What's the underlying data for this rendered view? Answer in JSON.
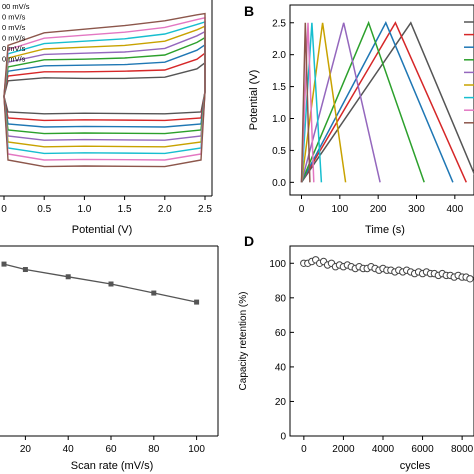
{
  "chart_data": [
    {
      "panel": "A",
      "type": "line",
      "xlabel": "Potential (V)",
      "ylabel": "",
      "xlim": [
        0,
        2.5
      ],
      "xticks": [
        "0",
        "0.5",
        "1.0",
        "1.5",
        "2.0",
        "2.5"
      ],
      "legend_visible": [
        "00 mV/s",
        "0 mV/s",
        "0 mV/s",
        "0 mV/s",
        "0 mV/s",
        "0 mV/s"
      ],
      "legend_placement": "top-left",
      "series_colors": [
        "#555555",
        "#d62728",
        "#1f77b4",
        "#2ca02c",
        "#9467bd",
        "#c8a200",
        "#17becf",
        "#e377c2",
        "#8c564b"
      ],
      "ylim": [
        -12,
        12
      ],
      "series": [
        {
          "values": [
            [
              0,
              -0.4
            ],
            [
              0.05,
              2.2
            ],
            [
              0.5,
              2.7
            ],
            [
              1.0,
              2.6
            ],
            [
              1.5,
              2.6
            ],
            [
              2.0,
              2.8
            ],
            [
              2.4,
              4.2
            ],
            [
              2.5,
              5.2
            ],
            [
              2.5,
              0.4
            ],
            [
              2.45,
              -3.0
            ],
            [
              2.0,
              -3.3
            ],
            [
              1.0,
              -3.2
            ],
            [
              0.5,
              -3.3
            ],
            [
              0.05,
              -3.0
            ],
            [
              0,
              -0.4
            ]
          ]
        },
        {
          "values": [
            [
              0,
              -0.4
            ],
            [
              0.05,
              3.0
            ],
            [
              0.5,
              3.7
            ],
            [
              1.0,
              3.7
            ],
            [
              1.5,
              3.8
            ],
            [
              2.0,
              4.0
            ],
            [
              2.4,
              5.8
            ],
            [
              2.5,
              6.8
            ],
            [
              2.5,
              0.4
            ],
            [
              2.45,
              -4.0
            ],
            [
              2.0,
              -4.4
            ],
            [
              1.0,
              -4.3
            ],
            [
              0.5,
              -4.4
            ],
            [
              0.05,
              -4.0
            ],
            [
              0,
              -0.4
            ]
          ]
        },
        {
          "values": [
            [
              0,
              -0.4
            ],
            [
              0.05,
              3.8
            ],
            [
              0.5,
              4.7
            ],
            [
              1.0,
              4.8
            ],
            [
              1.5,
              4.9
            ],
            [
              2.0,
              5.3
            ],
            [
              2.4,
              7.3
            ],
            [
              2.5,
              8.2
            ],
            [
              2.5,
              0.4
            ],
            [
              2.45,
              -5.0
            ],
            [
              2.0,
              -5.5
            ],
            [
              1.0,
              -5.4
            ],
            [
              0.5,
              -5.5
            ],
            [
              0.05,
              -5.0
            ],
            [
              0,
              -0.4
            ]
          ]
        },
        {
          "values": [
            [
              0,
              -0.4
            ],
            [
              0.05,
              4.5
            ],
            [
              0.5,
              5.7
            ],
            [
              1.0,
              5.8
            ],
            [
              1.5,
              6.0
            ],
            [
              2.0,
              6.5
            ],
            [
              2.4,
              8.6
            ],
            [
              2.5,
              9.4
            ],
            [
              2.5,
              0.4
            ],
            [
              2.45,
              -6.0
            ],
            [
              2.0,
              -6.6
            ],
            [
              1.0,
              -6.5
            ],
            [
              0.5,
              -6.6
            ],
            [
              0.05,
              -6.0
            ],
            [
              0,
              -0.4
            ]
          ]
        },
        {
          "values": [
            [
              0,
              -0.4
            ],
            [
              0.05,
              5.3
            ],
            [
              0.5,
              6.6
            ],
            [
              1.0,
              6.8
            ],
            [
              1.5,
              7.0
            ],
            [
              2.0,
              7.6
            ],
            [
              2.4,
              9.7
            ],
            [
              2.5,
              10.4
            ],
            [
              2.5,
              0.4
            ],
            [
              2.45,
              -7.0
            ],
            [
              2.0,
              -7.7
            ],
            [
              1.0,
              -7.6
            ],
            [
              0.5,
              -7.7
            ],
            [
              0.05,
              -7.0
            ],
            [
              0,
              -0.4
            ]
          ]
        },
        {
          "values": [
            [
              0,
              -0.4
            ],
            [
              0.05,
              6.0
            ],
            [
              0.5,
              7.5
            ],
            [
              1.0,
              7.8
            ],
            [
              1.5,
              8.1
            ],
            [
              2.0,
              8.8
            ],
            [
              2.4,
              10.7
            ],
            [
              2.5,
              11.3
            ],
            [
              2.5,
              0.4
            ],
            [
              2.45,
              -8.0
            ],
            [
              2.0,
              -8.8
            ],
            [
              1.0,
              -8.7
            ],
            [
              0.5,
              -8.8
            ],
            [
              0.05,
              -8.0
            ],
            [
              0,
              -0.4
            ]
          ]
        },
        {
          "values": [
            [
              0,
              -0.4
            ],
            [
              0.05,
              6.7
            ],
            [
              0.5,
              8.4
            ],
            [
              1.0,
              8.8
            ],
            [
              1.5,
              9.2
            ],
            [
              2.0,
              10.0
            ],
            [
              2.4,
              11.6
            ],
            [
              2.5,
              12.0
            ],
            [
              2.5,
              0.4
            ],
            [
              2.45,
              -9.0
            ],
            [
              2.0,
              -9.9
            ],
            [
              1.0,
              -9.8
            ],
            [
              0.5,
              -9.9
            ],
            [
              0.05,
              -9.0
            ],
            [
              0,
              -0.4
            ]
          ]
        },
        {
          "values": [
            [
              0,
              -0.4
            ],
            [
              0.05,
              7.4
            ],
            [
              0.5,
              9.3
            ],
            [
              1.0,
              9.8
            ],
            [
              1.5,
              10.3
            ],
            [
              2.0,
              11.1
            ],
            [
              2.4,
              12.4
            ],
            [
              2.5,
              12.7
            ],
            [
              2.5,
              0.4
            ],
            [
              2.45,
              -10.0
            ],
            [
              2.0,
              -11.0
            ],
            [
              1.0,
              -10.9
            ],
            [
              0.5,
              -11.0
            ],
            [
              0.05,
              -10.0
            ],
            [
              0,
              -0.4
            ]
          ]
        },
        {
          "values": [
            [
              0,
              -0.4
            ],
            [
              0.05,
              8.1
            ],
            [
              0.5,
              10.2
            ],
            [
              1.0,
              10.8
            ],
            [
              1.5,
              11.4
            ],
            [
              2.0,
              12.2
            ],
            [
              2.4,
              13.2
            ],
            [
              2.5,
              13.4
            ],
            [
              2.5,
              0.4
            ],
            [
              2.45,
              -11.0
            ],
            [
              2.0,
              -12.1
            ],
            [
              1.0,
              -12.0
            ],
            [
              0.5,
              -12.1
            ],
            [
              0.05,
              -11.0
            ],
            [
              0,
              -0.4
            ]
          ]
        }
      ]
    },
    {
      "panel": "B",
      "type": "line",
      "xlabel": "Time (s)",
      "ylabel": "Potential (V)",
      "xlim": [
        -30,
        450
      ],
      "ylim": [
        -0.12,
        2.7
      ],
      "xticks": [
        0,
        100,
        200,
        300,
        400
      ],
      "yticks": [
        "0.0",
        "0.5",
        "1.0",
        "1.5",
        "2.0",
        "2.5"
      ],
      "legend_placement": "top-right",
      "series": [
        {
          "color": "#555555",
          "values": [
            [
              0,
              0
            ],
            [
              285,
              2.5
            ],
            [
              460,
              0
            ]
          ]
        },
        {
          "color": "#d62728",
          "values": [
            [
              0,
              0
            ],
            [
              245,
              2.5
            ],
            [
              430,
              0
            ]
          ]
        },
        {
          "color": "#1f77b4",
          "values": [
            [
              0,
              0
            ],
            [
              220,
              2.5
            ],
            [
              395,
              0
            ]
          ]
        },
        {
          "color": "#2ca02c",
          "values": [
            [
              0,
              0
            ],
            [
              175,
              2.5
            ],
            [
              320,
              0
            ]
          ]
        },
        {
          "color": "#9467bd",
          "values": [
            [
              0,
              0
            ],
            [
              110,
              2.5
            ],
            [
              205,
              0
            ]
          ]
        },
        {
          "color": "#c8a200",
          "values": [
            [
              0,
              0
            ],
            [
              55,
              2.5
            ],
            [
              115,
              0
            ]
          ]
        },
        {
          "color": "#17becf",
          "values": [
            [
              0,
              0
            ],
            [
              27,
              2.5
            ],
            [
              52,
              0
            ]
          ]
        },
        {
          "color": "#e377c2",
          "values": [
            [
              0,
              0
            ],
            [
              17,
              2.5
            ],
            [
              32,
              0
            ]
          ]
        },
        {
          "color": "#8c564b",
          "values": [
            [
              0,
              0
            ],
            [
              10,
              2.5
            ],
            [
              22,
              0
            ]
          ]
        }
      ]
    },
    {
      "panel": "C",
      "type": "line",
      "xlabel": "Scan rate (mV/s)",
      "ylabel": "",
      "xlim": [
        10,
        110
      ],
      "ylim": [
        0,
        105
      ],
      "xticks": [
        20,
        40,
        60,
        80,
        100
      ],
      "series": [
        {
          "color": "#555555",
          "x": [
            10,
            20,
            40,
            60,
            80,
            100
          ],
          "values": [
            95,
            92,
            88,
            84,
            79,
            74
          ]
        }
      ]
    },
    {
      "panel": "D",
      "type": "scatter",
      "xlabel": "cycles",
      "ylabel": "Capacity retention (%)",
      "xlim": [
        -700,
        8600
      ],
      "ylim": [
        0,
        110
      ],
      "xticks": [
        0,
        2000,
        4000,
        6000,
        8000
      ],
      "yticks": [
        0,
        20,
        40,
        60,
        80,
        100
      ],
      "series": [
        {
          "color": "#444444",
          "x": [
            0,
            200,
            400,
            600,
            800,
            1000,
            1200,
            1400,
            1600,
            1800,
            2000,
            2200,
            2400,
            2600,
            2800,
            3000,
            3200,
            3400,
            3600,
            3800,
            4000,
            4200,
            4400,
            4600,
            4800,
            5000,
            5200,
            5400,
            5600,
            5800,
            6000,
            6200,
            6400,
            6600,
            6800,
            7000,
            7200,
            7400,
            7600,
            7800,
            8000,
            8200,
            8400
          ],
          "values": [
            100,
            100,
            101,
            102,
            100,
            101,
            99,
            100,
            98,
            99,
            98,
            99,
            98,
            97,
            98,
            97,
            97,
            98,
            97,
            96,
            97,
            96,
            96,
            95,
            96,
            95,
            96,
            95,
            94,
            95,
            94,
            95,
            94,
            94,
            93,
            94,
            93,
            93,
            92,
            93,
            92,
            92,
            91
          ]
        }
      ]
    }
  ],
  "panels": {
    "A": {
      "xtick_first": "0"
    },
    "B": {
      "label": "B"
    },
    "C": {
      "label": ""
    },
    "D": {
      "label": "D"
    }
  }
}
